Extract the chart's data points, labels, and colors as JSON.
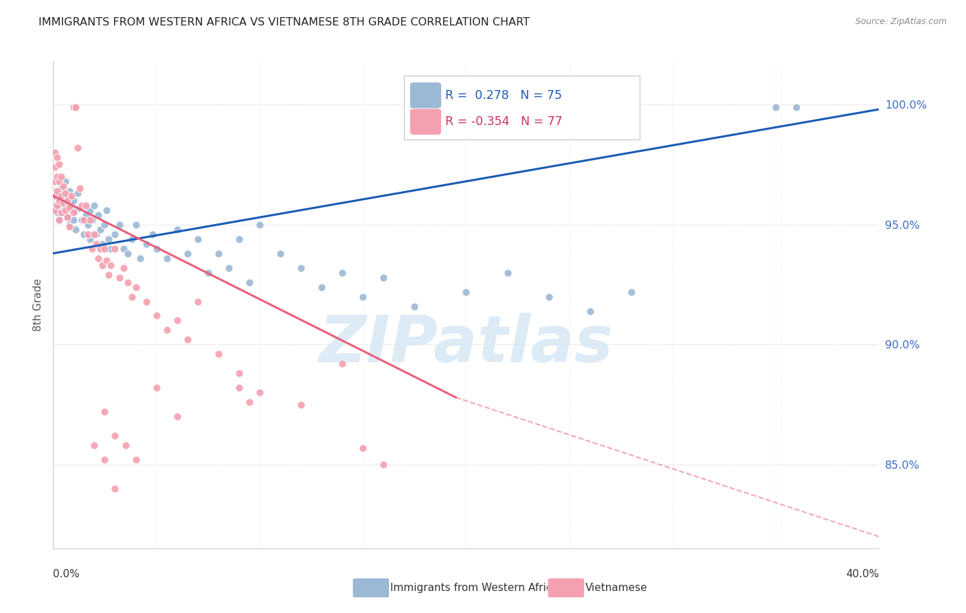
{
  "title": "IMMIGRANTS FROM WESTERN AFRICA VS VIETNAMESE 8TH GRADE CORRELATION CHART",
  "source": "Source: ZipAtlas.com",
  "ylabel": "8th Grade",
  "xmin": 0.0,
  "xmax": 0.4,
  "ymin": 0.815,
  "ymax": 1.018,
  "watermark": "ZIPatlas",
  "legend_blue_r": "0.278",
  "legend_blue_n": "75",
  "legend_pink_r": "-0.354",
  "legend_pink_n": "77",
  "blue_color": "#9BB8D4",
  "pink_color": "#F4A0B0",
  "blue_line_color": "#1A5BB5",
  "pink_line_color": "#E8607A",
  "blue_trend": [
    0.0,
    0.4,
    0.938,
    0.998
  ],
  "pink_trend_solid": [
    0.0,
    0.195,
    0.962,
    0.878
  ],
  "pink_trend_dash": [
    0.195,
    0.4,
    0.878,
    0.82
  ],
  "blue_scatter": [
    [
      0.001,
      0.962
    ],
    [
      0.001,
      0.958
    ],
    [
      0.002,
      0.968
    ],
    [
      0.002,
      0.955
    ],
    [
      0.003,
      0.963
    ],
    [
      0.003,
      0.958
    ],
    [
      0.003,
      0.952
    ],
    [
      0.004,
      0.965
    ],
    [
      0.004,
      0.959
    ],
    [
      0.005,
      0.962
    ],
    [
      0.005,
      0.955
    ],
    [
      0.006,
      0.968
    ],
    [
      0.006,
      0.957
    ],
    [
      0.007,
      0.961
    ],
    [
      0.007,
      0.953
    ],
    [
      0.008,
      0.964
    ],
    [
      0.008,
      0.95
    ],
    [
      0.009,
      0.958
    ],
    [
      0.01,
      0.96
    ],
    [
      0.01,
      0.952
    ],
    [
      0.011,
      0.956
    ],
    [
      0.011,
      0.948
    ],
    [
      0.012,
      0.963
    ],
    [
      0.013,
      0.957
    ],
    [
      0.014,
      0.952
    ],
    [
      0.015,
      0.958
    ],
    [
      0.015,
      0.946
    ],
    [
      0.016,
      0.954
    ],
    [
      0.017,
      0.95
    ],
    [
      0.018,
      0.956
    ],
    [
      0.018,
      0.944
    ],
    [
      0.019,
      0.952
    ],
    [
      0.02,
      0.958
    ],
    [
      0.021,
      0.946
    ],
    [
      0.022,
      0.954
    ],
    [
      0.023,
      0.948
    ],
    [
      0.024,
      0.942
    ],
    [
      0.025,
      0.95
    ],
    [
      0.026,
      0.956
    ],
    [
      0.027,
      0.944
    ],
    [
      0.028,
      0.94
    ],
    [
      0.03,
      0.946
    ],
    [
      0.032,
      0.95
    ],
    [
      0.034,
      0.94
    ],
    [
      0.036,
      0.938
    ],
    [
      0.038,
      0.944
    ],
    [
      0.04,
      0.95
    ],
    [
      0.042,
      0.936
    ],
    [
      0.045,
      0.942
    ],
    [
      0.048,
      0.946
    ],
    [
      0.05,
      0.94
    ],
    [
      0.055,
      0.936
    ],
    [
      0.06,
      0.948
    ],
    [
      0.065,
      0.938
    ],
    [
      0.07,
      0.944
    ],
    [
      0.075,
      0.93
    ],
    [
      0.08,
      0.938
    ],
    [
      0.085,
      0.932
    ],
    [
      0.09,
      0.944
    ],
    [
      0.095,
      0.926
    ],
    [
      0.1,
      0.95
    ],
    [
      0.11,
      0.938
    ],
    [
      0.12,
      0.932
    ],
    [
      0.13,
      0.924
    ],
    [
      0.14,
      0.93
    ],
    [
      0.15,
      0.92
    ],
    [
      0.16,
      0.928
    ],
    [
      0.175,
      0.916
    ],
    [
      0.2,
      0.922
    ],
    [
      0.22,
      0.93
    ],
    [
      0.24,
      0.92
    ],
    [
      0.26,
      0.914
    ],
    [
      0.28,
      0.922
    ],
    [
      0.35,
      0.999
    ],
    [
      0.36,
      0.999
    ]
  ],
  "pink_scatter": [
    [
      0.001,
      0.98
    ],
    [
      0.001,
      0.974
    ],
    [
      0.001,
      0.968
    ],
    [
      0.001,
      0.962
    ],
    [
      0.001,
      0.956
    ],
    [
      0.002,
      0.978
    ],
    [
      0.002,
      0.97
    ],
    [
      0.002,
      0.964
    ],
    [
      0.002,
      0.958
    ],
    [
      0.003,
      0.975
    ],
    [
      0.003,
      0.968
    ],
    [
      0.003,
      0.96
    ],
    [
      0.003,
      0.952
    ],
    [
      0.004,
      0.97
    ],
    [
      0.004,
      0.962
    ],
    [
      0.004,
      0.955
    ],
    [
      0.005,
      0.966
    ],
    [
      0.005,
      0.959
    ],
    [
      0.006,
      0.963
    ],
    [
      0.006,
      0.956
    ],
    [
      0.007,
      0.96
    ],
    [
      0.007,
      0.953
    ],
    [
      0.008,
      0.957
    ],
    [
      0.008,
      0.949
    ],
    [
      0.009,
      0.962
    ],
    [
      0.01,
      0.955
    ],
    [
      0.01,
      0.999
    ],
    [
      0.01,
      0.999
    ],
    [
      0.011,
      0.999
    ],
    [
      0.011,
      0.999
    ],
    [
      0.012,
      0.982
    ],
    [
      0.013,
      0.965
    ],
    [
      0.014,
      0.958
    ],
    [
      0.015,
      0.952
    ],
    [
      0.016,
      0.958
    ],
    [
      0.017,
      0.946
    ],
    [
      0.018,
      0.952
    ],
    [
      0.019,
      0.94
    ],
    [
      0.02,
      0.946
    ],
    [
      0.02,
      0.858
    ],
    [
      0.021,
      0.942
    ],
    [
      0.022,
      0.936
    ],
    [
      0.023,
      0.94
    ],
    [
      0.024,
      0.933
    ],
    [
      0.025,
      0.94
    ],
    [
      0.025,
      0.872
    ],
    [
      0.025,
      0.852
    ],
    [
      0.026,
      0.935
    ],
    [
      0.027,
      0.929
    ],
    [
      0.028,
      0.933
    ],
    [
      0.03,
      0.94
    ],
    [
      0.03,
      0.862
    ],
    [
      0.03,
      0.84
    ],
    [
      0.032,
      0.928
    ],
    [
      0.034,
      0.932
    ],
    [
      0.035,
      0.858
    ],
    [
      0.036,
      0.926
    ],
    [
      0.038,
      0.92
    ],
    [
      0.04,
      0.924
    ],
    [
      0.04,
      0.852
    ],
    [
      0.045,
      0.918
    ],
    [
      0.05,
      0.912
    ],
    [
      0.05,
      0.882
    ],
    [
      0.055,
      0.906
    ],
    [
      0.06,
      0.91
    ],
    [
      0.06,
      0.87
    ],
    [
      0.065,
      0.902
    ],
    [
      0.07,
      0.918
    ],
    [
      0.08,
      0.896
    ],
    [
      0.09,
      0.888
    ],
    [
      0.09,
      0.882
    ],
    [
      0.095,
      0.876
    ],
    [
      0.1,
      0.88
    ],
    [
      0.12,
      0.875
    ],
    [
      0.14,
      0.892
    ],
    [
      0.15,
      0.857
    ],
    [
      0.16,
      0.85
    ]
  ]
}
